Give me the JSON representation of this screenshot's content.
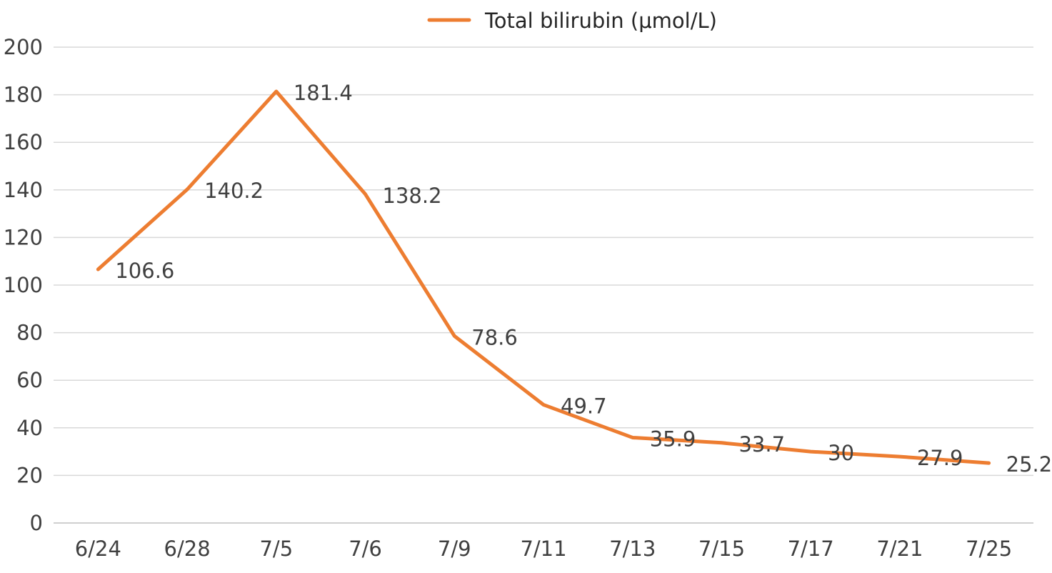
{
  "chart_data": {
    "type": "line",
    "categories": [
      "6/24",
      "6/28",
      "7/5",
      "7/6",
      "7/9",
      "7/11",
      "7/13",
      "7/15",
      "7/17",
      "7/21",
      "7/25"
    ],
    "series": [
      {
        "name": "Total bilirubin (μmol/L)",
        "values": [
          106.6,
          140.2,
          181.4,
          138.2,
          78.6,
          49.7,
          35.9,
          33.7,
          30,
          27.9,
          25.2
        ],
        "data_labels": [
          "106.6",
          "140.2",
          "181.4",
          "138.2",
          "78.6",
          "49.7",
          "35.9",
          "33.7",
          "30",
          "27.9",
          "25.2"
        ],
        "color": "#ED7D31"
      }
    ],
    "yticks": [
      "0",
      "20",
      "40",
      "60",
      "80",
      "100",
      "120",
      "140",
      "160",
      "180",
      "200"
    ],
    "ylim": [
      0,
      200
    ],
    "grid": true,
    "legend_position": "top",
    "colors": {
      "line": "#ED7D31",
      "grid": "#D9D9D9",
      "text": "#404040"
    }
  }
}
